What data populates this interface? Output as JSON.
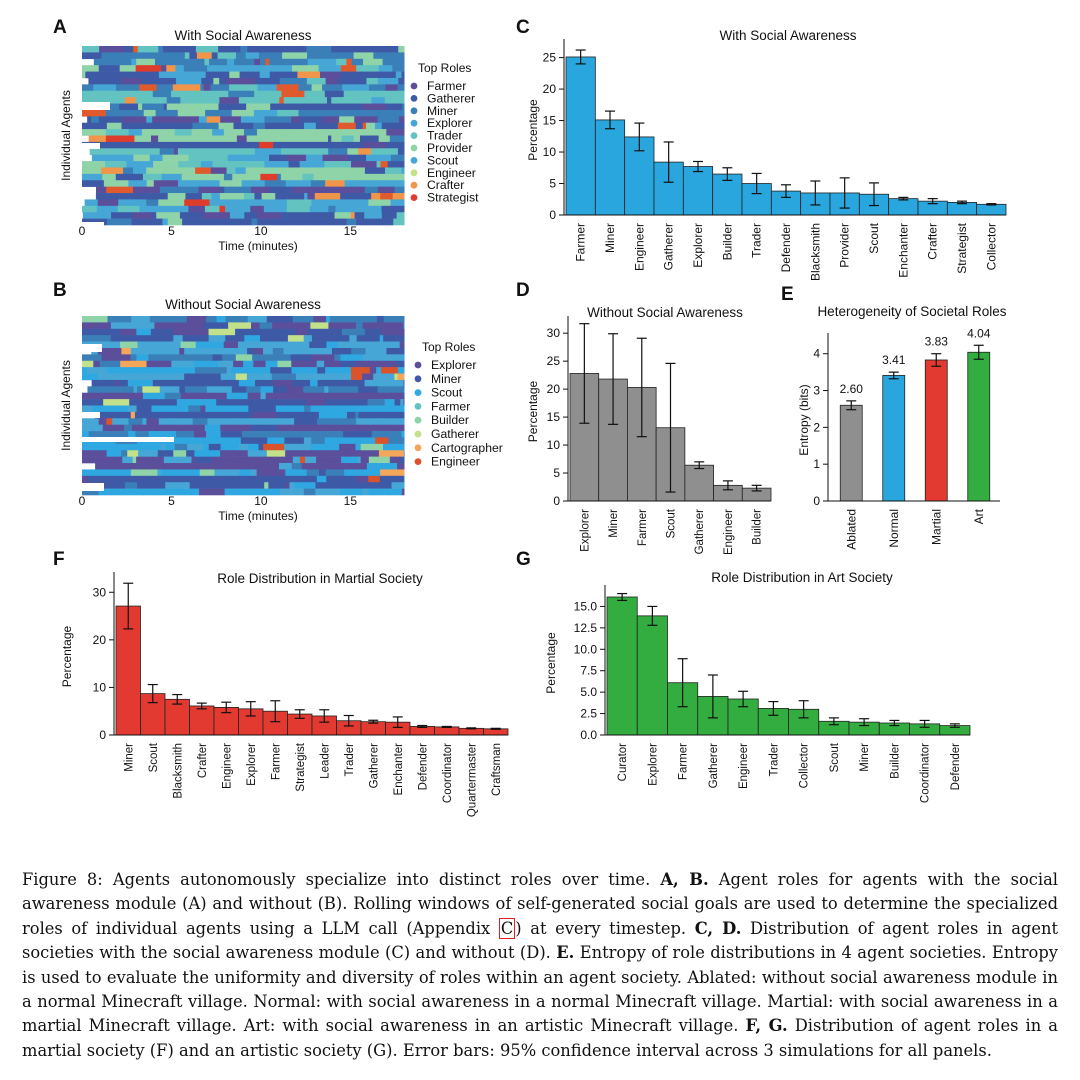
{
  "figure": {
    "panel_letters": [
      "A",
      "B",
      "C",
      "D",
      "E",
      "F",
      "G"
    ],
    "heatmap_y_label": "Individual Agents",
    "heatmap_x_label": "Time (minutes)",
    "heatmap_x_ticks": [
      "0",
      "5",
      "10",
      "15"
    ],
    "legend_title": "Top Roles"
  },
  "colors": {
    "blue": "#29a6dd",
    "gray": "#8f8f8f",
    "red": "#e23a30",
    "green": "#33ad3f",
    "palette": {
      "Farmer": "#5b4f9c",
      "Gatherer": "#3e5aa6",
      "Miner": "#3b7fb8",
      "Explorer": "#46a7d6",
      "Trader": "#62c3c0",
      "Provider": "#8fd3a8",
      "Scout": "#2fa7e0",
      "Builder": "#8fd3a8",
      "Engineer": "#e05a2e",
      "Crafter": "#f0954a",
      "Strategist": "#e03c2b",
      "Cartographer": "#f4a65a",
      "GathererB": "#c3e08a",
      "EngineerB": "#d9532b"
    }
  },
  "chart_data": [
    {
      "panel": "A",
      "type": "heatmap",
      "title": "With Social Awareness",
      "xlabel": "Time (minutes)",
      "ylabel": "Individual Agents",
      "xlim": [
        0,
        18
      ],
      "legend_title": "Top Roles",
      "legend": [
        "Farmer",
        "Gatherer",
        "Miner",
        "Explorer",
        "Trader",
        "Provider",
        "Scout",
        "Engineer",
        "Crafter",
        "Strategist"
      ]
    },
    {
      "panel": "B",
      "type": "heatmap",
      "title": "Without Social Awareness",
      "xlabel": "Time (minutes)",
      "ylabel": "Individual Agents",
      "xlim": [
        0,
        18
      ],
      "legend_title": "Top Roles",
      "legend": [
        "Explorer",
        "Miner",
        "Scout",
        "Farmer",
        "Builder",
        "Gatherer",
        "Cartographer",
        "Engineer"
      ]
    },
    {
      "panel": "C",
      "type": "bar",
      "title": "With Social Awareness",
      "ylabel": "Percentage",
      "ylim": [
        0,
        27
      ],
      "yticks": [
        0,
        5,
        10,
        15,
        20,
        25
      ],
      "categories": [
        "Farmer",
        "Miner",
        "Engineer",
        "Gatherer",
        "Explorer",
        "Builder",
        "Trader",
        "Defender",
        "Blacksmith",
        "Provider",
        "Scout",
        "Enchanter",
        "Crafter",
        "Strategist",
        "Collector"
      ],
      "values": [
        25.1,
        15.1,
        12.4,
        8.4,
        7.7,
        6.5,
        5.0,
        3.8,
        3.5,
        3.5,
        3.3,
        2.6,
        2.2,
        2.0,
        1.7
      ],
      "err": [
        1.1,
        1.4,
        2.2,
        3.2,
        0.8,
        1.0,
        1.6,
        1.0,
        1.9,
        2.4,
        1.8,
        0.2,
        0.4,
        0.2,
        0.1
      ]
    },
    {
      "panel": "D",
      "type": "bar",
      "title": "Without Social Awareness",
      "ylabel": "Percentage",
      "ylim": [
        0,
        32
      ],
      "yticks": [
        0,
        5,
        10,
        15,
        20,
        25,
        30
      ],
      "categories": [
        "Explorer",
        "Miner",
        "Farmer",
        "Scout",
        "Gatherer",
        "Engineer",
        "Builder"
      ],
      "values": [
        22.8,
        21.8,
        20.3,
        13.1,
        6.4,
        2.8,
        2.3
      ],
      "err": [
        8.9,
        8.1,
        8.8,
        11.5,
        0.6,
        0.8,
        0.5
      ]
    },
    {
      "panel": "E",
      "type": "bar",
      "title": "Heterogeneity of Societal Roles",
      "ylabel": "Entropy (bits)",
      "ylim": [
        0,
        4.4
      ],
      "yticks": [
        0,
        1,
        2,
        3,
        4
      ],
      "categories": [
        "Ablated",
        "Normal",
        "Martial",
        "Art"
      ],
      "values": [
        2.6,
        3.41,
        3.83,
        4.04
      ],
      "value_labels": [
        "2.60",
        "3.41",
        "3.83",
        "4.04"
      ],
      "err": [
        0.12,
        0.09,
        0.17,
        0.19
      ]
    },
    {
      "panel": "F",
      "type": "bar",
      "title": "Role Distribution in Martial Society",
      "ylabel": "Percentage",
      "ylim": [
        0,
        33
      ],
      "yticks": [
        0,
        10,
        20,
        30
      ],
      "categories": [
        "Miner",
        "Scout",
        "Blacksmith",
        "Crafter",
        "Engineer",
        "Explorer",
        "Farmer",
        "Strategist",
        "Leader",
        "Trader",
        "Gatherer",
        "Enchanter",
        "Defender",
        "Coordinator",
        "Quartermaster",
        "Craftsman"
      ],
      "values": [
        27.1,
        8.7,
        7.5,
        6.1,
        5.8,
        5.5,
        5.0,
        4.4,
        4.0,
        3.0,
        2.8,
        2.7,
        1.8,
        1.7,
        1.4,
        1.3
      ],
      "err": [
        4.8,
        1.9,
        1.0,
        0.6,
        1.1,
        1.5,
        2.2,
        0.9,
        1.3,
        1.1,
        0.3,
        1.1,
        0.2,
        0.1,
        0.1,
        0.1
      ]
    },
    {
      "panel": "G",
      "type": "bar",
      "title": "Role Distribution in Art Society",
      "ylabel": "Percentage",
      "ylim": [
        0,
        16.8
      ],
      "yticks": [
        0,
        2.5,
        5,
        7.5,
        10,
        12.5,
        15
      ],
      "ytick_labels": [
        "0.0",
        "2.5",
        "5.0",
        "7.5",
        "10.0",
        "12.5",
        "15.0"
      ],
      "categories": [
        "Curator",
        "Explorer",
        "Farmer",
        "Gatherer",
        "Engineer",
        "Trader",
        "Collector",
        "Scout",
        "Miner",
        "Builder",
        "Coordinator",
        "Defender"
      ],
      "values": [
        16.1,
        13.9,
        6.1,
        4.5,
        4.2,
        3.1,
        3.0,
        1.6,
        1.5,
        1.4,
        1.3,
        1.1
      ],
      "err": [
        0.4,
        1.1,
        2.8,
        2.5,
        0.9,
        0.8,
        1.0,
        0.4,
        0.4,
        0.3,
        0.4,
        0.2
      ]
    }
  ],
  "caption": {
    "label": "Figure 8: Agents autonomously specialize into distinct roles over time.",
    "ab_tag": "A, B.",
    "ab_text_1": "Agent roles for agents with the social awareness module (A) and without (B). Rolling windows of self-generated social goals are used to determine the specialized roles of individual agents using a LLM call (Appendix",
    "appendix": "C",
    "ab_text_2": ") at every timestep.",
    "cd_tag": "C, D.",
    "cd_text": "Distribution of agent roles in agent societies with the social awareness module (C) and without (D).",
    "e_tag": "E.",
    "e_text": "Entropy of role distributions in 4 agent societies. Entropy is used to evaluate the uniformity and diversity of roles within an agent society. Ablated: without social awareness module in a normal Minecraft village. Normal: with social awareness in a normal Minecraft village. Martial: with social awareness in a martial Minecraft village. Art: with social awareness in an artistic Minecraft village.",
    "fg_tag": "F, G.",
    "fg_text": "Distribution of agent roles in a martial society (F) and an artistic society (G). Error bars: 95% confidence interval across 3 simulations for all panels."
  }
}
